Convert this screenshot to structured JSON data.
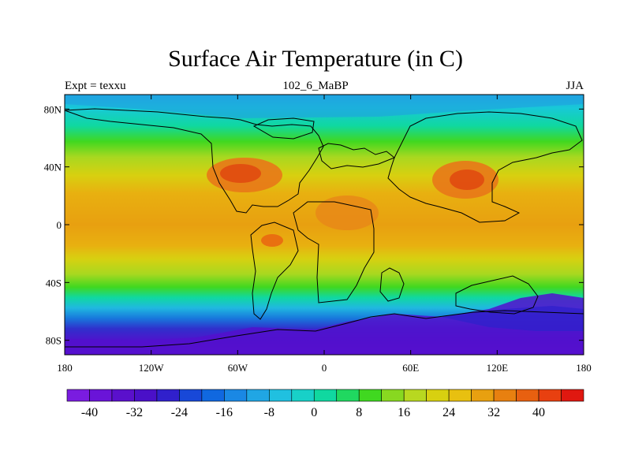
{
  "header": {
    "title": "Surface Air Temperature (in C)",
    "left": "Expt = texxu",
    "center": "102_6_MaBP",
    "right": "JJA"
  },
  "map": {
    "lon_range": [
      -180,
      180
    ],
    "lat_range": [
      -90,
      90
    ],
    "lon_ticks": [
      {
        "value": -180,
        "label": "180"
      },
      {
        "value": -120,
        "label": "120W"
      },
      {
        "value": -60,
        "label": "60W"
      },
      {
        "value": 0,
        "label": "0"
      },
      {
        "value": 60,
        "label": "60E"
      },
      {
        "value": 120,
        "label": "120E"
      },
      {
        "value": 180,
        "label": "180"
      }
    ],
    "lat_ticks": [
      {
        "value": 80,
        "label": "80N"
      },
      {
        "value": 40,
        "label": "40N"
      },
      {
        "value": 0,
        "label": "0"
      },
      {
        "value": -40,
        "label": "40S"
      },
      {
        "value": -80,
        "label": "80S"
      }
    ]
  },
  "colorbar": {
    "colors": [
      "#7a1ce0",
      "#6a14d8",
      "#5a10cc",
      "#4a10c8",
      "#3020cc",
      "#1848d8",
      "#1068e0",
      "#1a88e4",
      "#20a6e4",
      "#20c0e0",
      "#18d0c8",
      "#10d8a0",
      "#20d860",
      "#40d820",
      "#88d820",
      "#b8d820",
      "#d8d010",
      "#e8c010",
      "#e8a010",
      "#e88010",
      "#e86010",
      "#e84010",
      "#e01810"
    ],
    "labels": [
      {
        "value": -40,
        "label": "-40"
      },
      {
        "value": -32,
        "label": "-32"
      },
      {
        "value": -24,
        "label": "-24"
      },
      {
        "value": -16,
        "label": "-16"
      },
      {
        "value": -8,
        "label": "-8"
      },
      {
        "value": 0,
        "label": "0"
      },
      {
        "value": 8,
        "label": "8"
      },
      {
        "value": 16,
        "label": "16"
      },
      {
        "value": 24,
        "label": "24"
      },
      {
        "value": 32,
        "label": "32"
      },
      {
        "value": 40,
        "label": "40"
      }
    ]
  }
}
